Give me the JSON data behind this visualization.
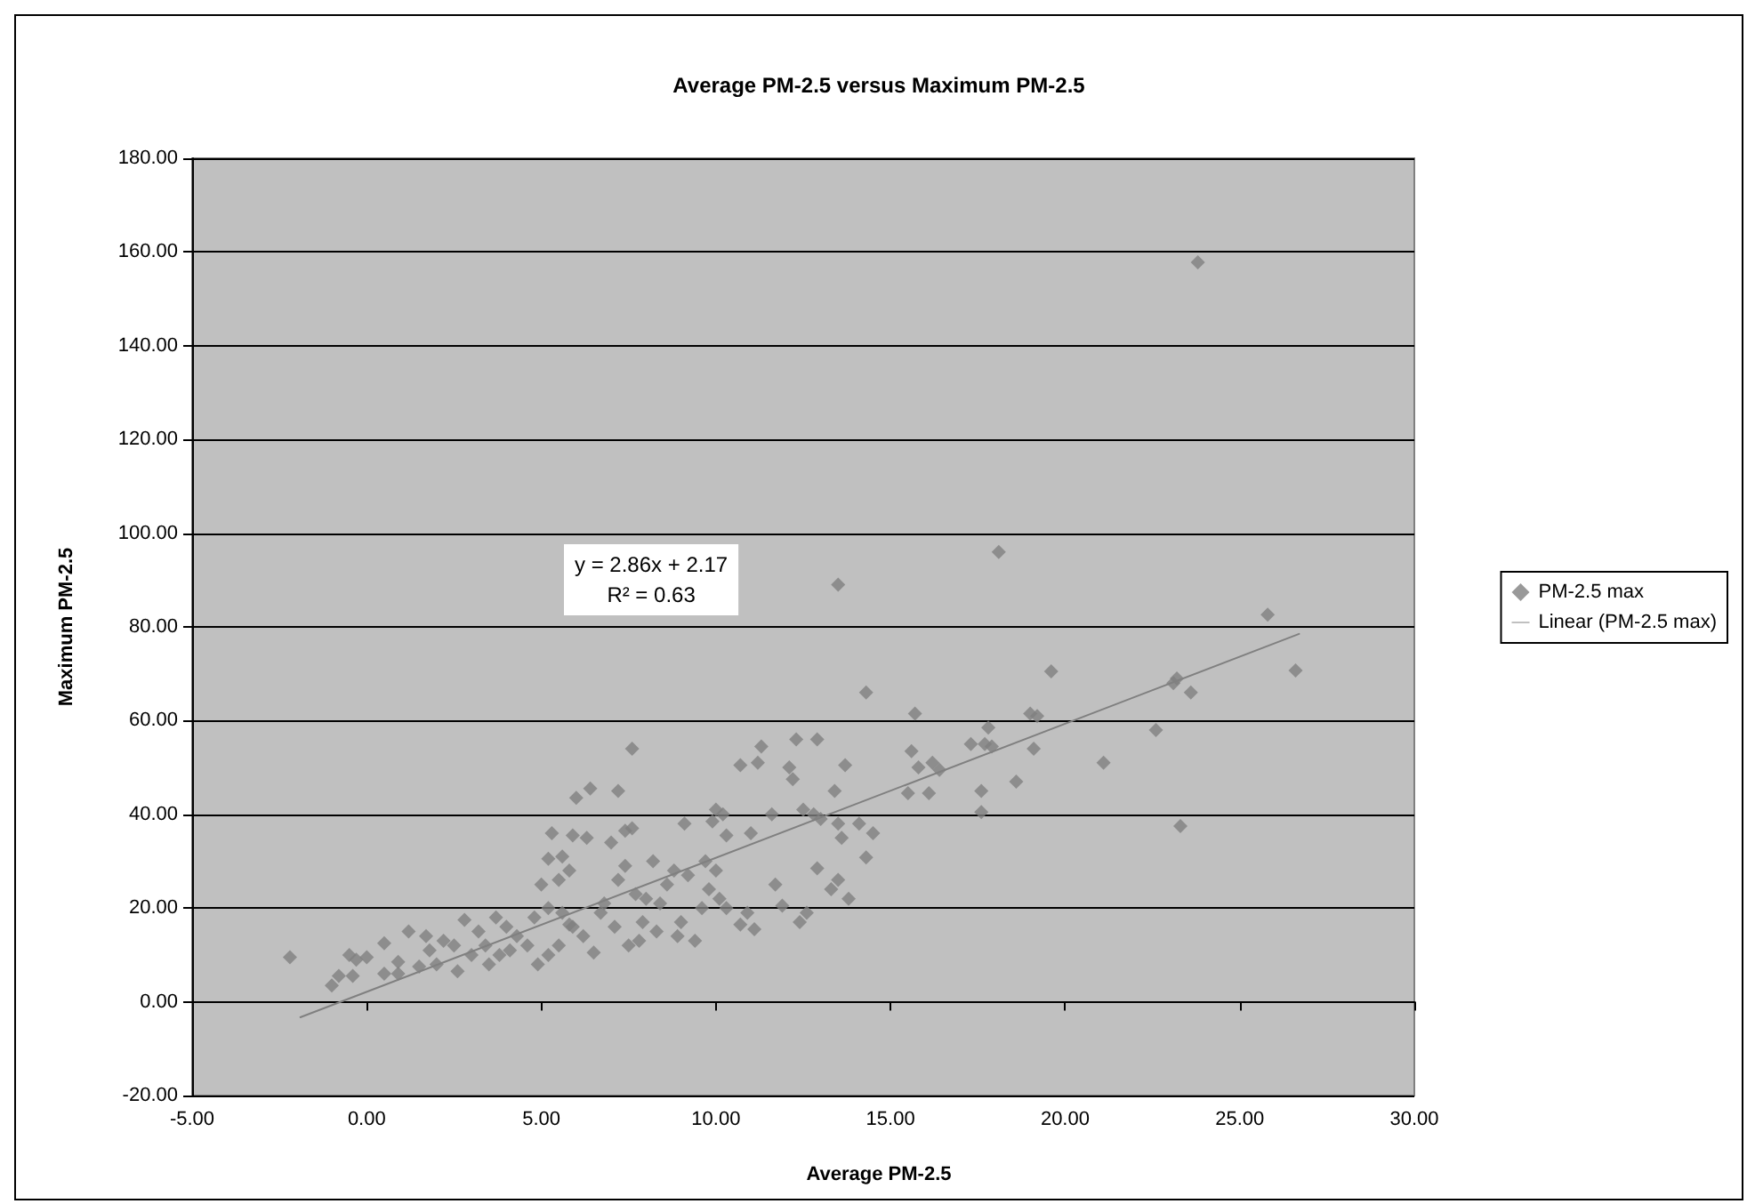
{
  "chart_data": {
    "type": "scatter",
    "title": "Average PM-2.5 versus Maximum PM-2.5",
    "xlabel": "Average PM-2.5",
    "ylabel": "Maximum PM-2.5",
    "annotations": [
      "y = 2.86x + 2.17\nR² = 0.63"
    ],
    "xlim": [
      -5,
      30
    ],
    "xticks": [
      {
        "value": -5,
        "label": "-5.00"
      },
      {
        "value": 0,
        "label": "0.00"
      },
      {
        "value": 5,
        "label": "5.00"
      },
      {
        "value": 10,
        "label": "10.00"
      },
      {
        "value": 15,
        "label": "15.00"
      },
      {
        "value": 20,
        "label": "20.00"
      },
      {
        "value": 25,
        "label": "25.00"
      },
      {
        "value": 30,
        "label": "30.00"
      }
    ],
    "ylim": [
      -20,
      180
    ],
    "yticks": [
      {
        "value": -20,
        "label": "-20.00"
      },
      {
        "value": 0,
        "label": "0.00"
      },
      {
        "value": 20,
        "label": "20.00"
      },
      {
        "value": 40,
        "label": "40.00"
      },
      {
        "value": 60,
        "label": "60.00"
      },
      {
        "value": 80,
        "label": "80.00"
      },
      {
        "value": 100,
        "label": "100.00"
      },
      {
        "value": 120,
        "label": "120.00"
      },
      {
        "value": 140,
        "label": "140.00"
      },
      {
        "value": 160,
        "label": "160.00"
      },
      {
        "value": 180,
        "label": "180.00"
      }
    ],
    "grid": "y",
    "legend": "right",
    "series": [
      {
        "name": "PM-2.5 max",
        "marker": "diamond",
        "color": "#808080",
        "x": [
          23.8,
          13.5,
          18.1,
          25.8,
          26.6,
          23.1,
          23.2,
          23.6,
          22.6,
          21.1,
          23.3,
          19.6,
          19.0,
          19.2,
          19.1,
          18.6,
          17.8,
          17.7,
          17.9,
          17.6,
          17.6,
          17.3,
          15.7,
          15.6,
          16.2,
          16.4,
          16.1,
          15.5,
          15.8,
          14.3,
          14.1,
          14.5,
          14.3,
          13.8,
          13.7,
          13.4,
          13.5,
          13.6,
          13.3,
          13.5,
          12.9,
          12.3,
          12.1,
          12.2,
          12.5,
          12.8,
          13.0,
          12.9,
          12.6,
          12.4,
          11.9,
          11.7,
          11.3,
          11.2,
          10.7,
          11.6,
          11.0,
          10.9,
          11.1,
          10.7,
          10.0,
          10.2,
          9.9,
          10.3,
          9.7,
          10.0,
          9.8,
          10.1,
          9.6,
          10.3,
          9.4,
          9.0,
          9.2,
          8.8,
          9.1,
          8.6,
          8.4,
          8.2,
          8.0,
          7.9,
          7.6,
          7.6,
          7.4,
          7.2,
          7.0,
          7.4,
          7.2,
          7.8,
          7.5,
          7.1,
          6.7,
          6.4,
          6.0,
          6.3,
          5.9,
          5.3,
          5.6,
          5.2,
          5.5,
          5.8,
          5.0,
          5.2,
          5.6,
          5.9,
          6.2,
          5.5,
          5.2,
          4.9,
          4.6,
          4.3,
          4.8,
          4.0,
          3.7,
          3.4,
          3.0,
          3.2,
          2.8,
          2.5,
          2.2,
          2.0,
          1.8,
          1.7,
          1.5,
          1.2,
          0.9,
          0.5,
          0.5,
          0.9,
          0.0,
          -0.5,
          -0.3,
          -0.8,
          -1.0,
          -0.4,
          -2.2,
          2.6,
          3.5,
          4.1,
          6.8,
          7.7,
          8.3,
          8.9,
          6.5,
          5.8,
          3.8
        ],
        "values": [
          157.8,
          89,
          96,
          82.6,
          70.7,
          68,
          69,
          66,
          58,
          51,
          37.5,
          70.5,
          61.5,
          61,
          54,
          47,
          58.5,
          55,
          54.5,
          45,
          40.5,
          55,
          61.5,
          53.5,
          51,
          49.5,
          44.5,
          44.5,
          50,
          66,
          38,
          36,
          30.8,
          22,
          50.5,
          45,
          38,
          35,
          24,
          26,
          56,
          56,
          50,
          47.5,
          41,
          40,
          39,
          28.5,
          19,
          17,
          20.5,
          25,
          54.5,
          51,
          50.5,
          40,
          36,
          19,
          15.5,
          16.5,
          41,
          40,
          38.5,
          35.5,
          30,
          28,
          24,
          22,
          20,
          20,
          13,
          17,
          27,
          28,
          38,
          25,
          21,
          30,
          22,
          17,
          54,
          37,
          36.5,
          45,
          34,
          29,
          26,
          13,
          12,
          16,
          19,
          45.5,
          43.5,
          35,
          35.5,
          36,
          31,
          30.5,
          26,
          28,
          25,
          20,
          19,
          16,
          14,
          12,
          10,
          8,
          12,
          14,
          18,
          16,
          18,
          12,
          10,
          15,
          17.5,
          12,
          13,
          8,
          11,
          14,
          7.5,
          15,
          8.5,
          6,
          12.5,
          6,
          9.5,
          10,
          9,
          5.5,
          3.5,
          5.5,
          9.5,
          6.5,
          8,
          11,
          21,
          23,
          15,
          14,
          10.5,
          16.5,
          10
        ]
      },
      {
        "name": "Linear (PM-2.5 max)",
        "type": "line",
        "color": "#808080",
        "x": [
          -1.9,
          26.7
        ],
        "values": [
          -3.3,
          78.5
        ]
      }
    ]
  }
}
